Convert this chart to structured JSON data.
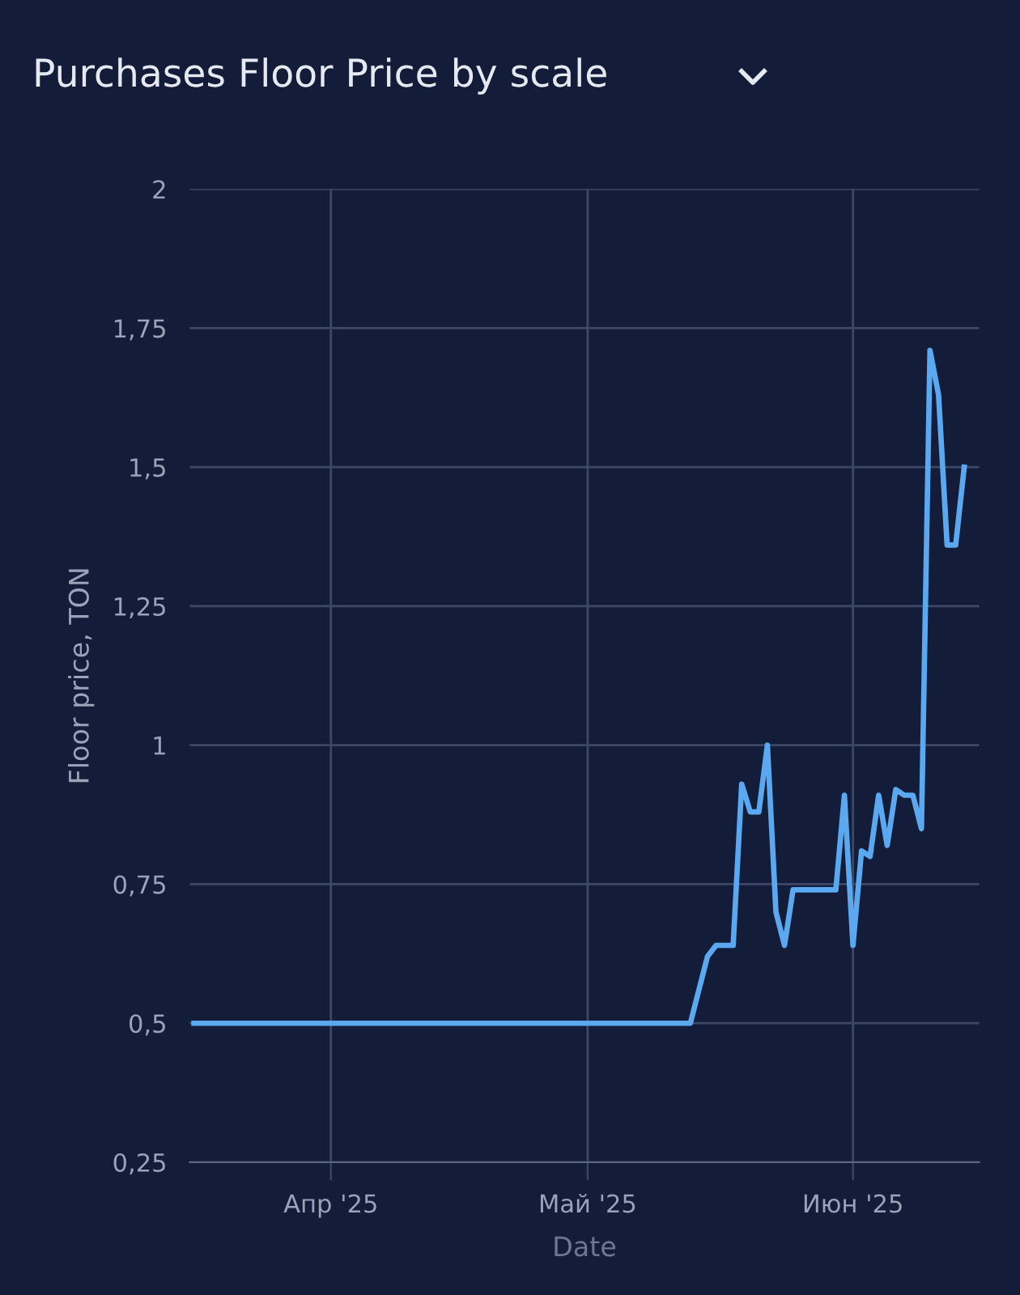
{
  "chart_data": {
    "type": "line",
    "title": "Purchases Floor Price by scale",
    "xlabel": "Date",
    "ylabel": "Floor price, TON",
    "x": [
      "2025-03-16",
      "2025-05-13",
      "2025-05-15",
      "2025-05-16",
      "2025-05-18",
      "2025-05-19",
      "2025-05-20",
      "2025-05-21",
      "2025-05-22",
      "2025-05-23",
      "2025-05-24",
      "2025-05-25",
      "2025-05-30",
      "2025-05-31",
      "2025-06-01",
      "2025-06-02",
      "2025-06-03",
      "2025-06-04",
      "2025-06-05",
      "2025-06-06",
      "2025-06-07",
      "2025-06-08",
      "2025-06-09",
      "2025-06-10",
      "2025-06-11",
      "2025-06-12",
      "2025-06-13",
      "2025-06-14"
    ],
    "series": [
      {
        "color": "#5aa9f0",
        "values": [
          0.5,
          0.5,
          0.62,
          0.64,
          0.64,
          0.93,
          0.88,
          0.88,
          1.0,
          0.7,
          0.64,
          0.74,
          0.74,
          0.91,
          0.64,
          0.81,
          0.8,
          0.91,
          0.82,
          0.92,
          0.91,
          0.91,
          0.85,
          1.71,
          1.63,
          1.36,
          1.36,
          1.5
        ]
      }
    ],
    "xlim": [
      "2025-03-15T12:00",
      "2025-06-15T18:00"
    ],
    "xticks": [
      {
        "value": "2025-04-01",
        "label": "Апр '25"
      },
      {
        "value": "2025-05-01",
        "label": "Май '25"
      },
      {
        "value": "2025-06-01",
        "label": "Июн '25"
      }
    ],
    "ylim": [
      0.25,
      2
    ],
    "yticks": [
      {
        "value": 0.25,
        "label": "0,25"
      },
      {
        "value": 0.5,
        "label": "0,5"
      },
      {
        "value": 0.75,
        "label": "0,75"
      },
      {
        "value": 1,
        "label": "1"
      },
      {
        "value": 1.25,
        "label": "1,25"
      },
      {
        "value": 1.5,
        "label": "1,5"
      },
      {
        "value": 1.75,
        "label": "1,75"
      },
      {
        "value": 2,
        "label": "2"
      }
    ],
    "grid": true,
    "legend": false,
    "marker": "none",
    "line_style": "solid"
  }
}
